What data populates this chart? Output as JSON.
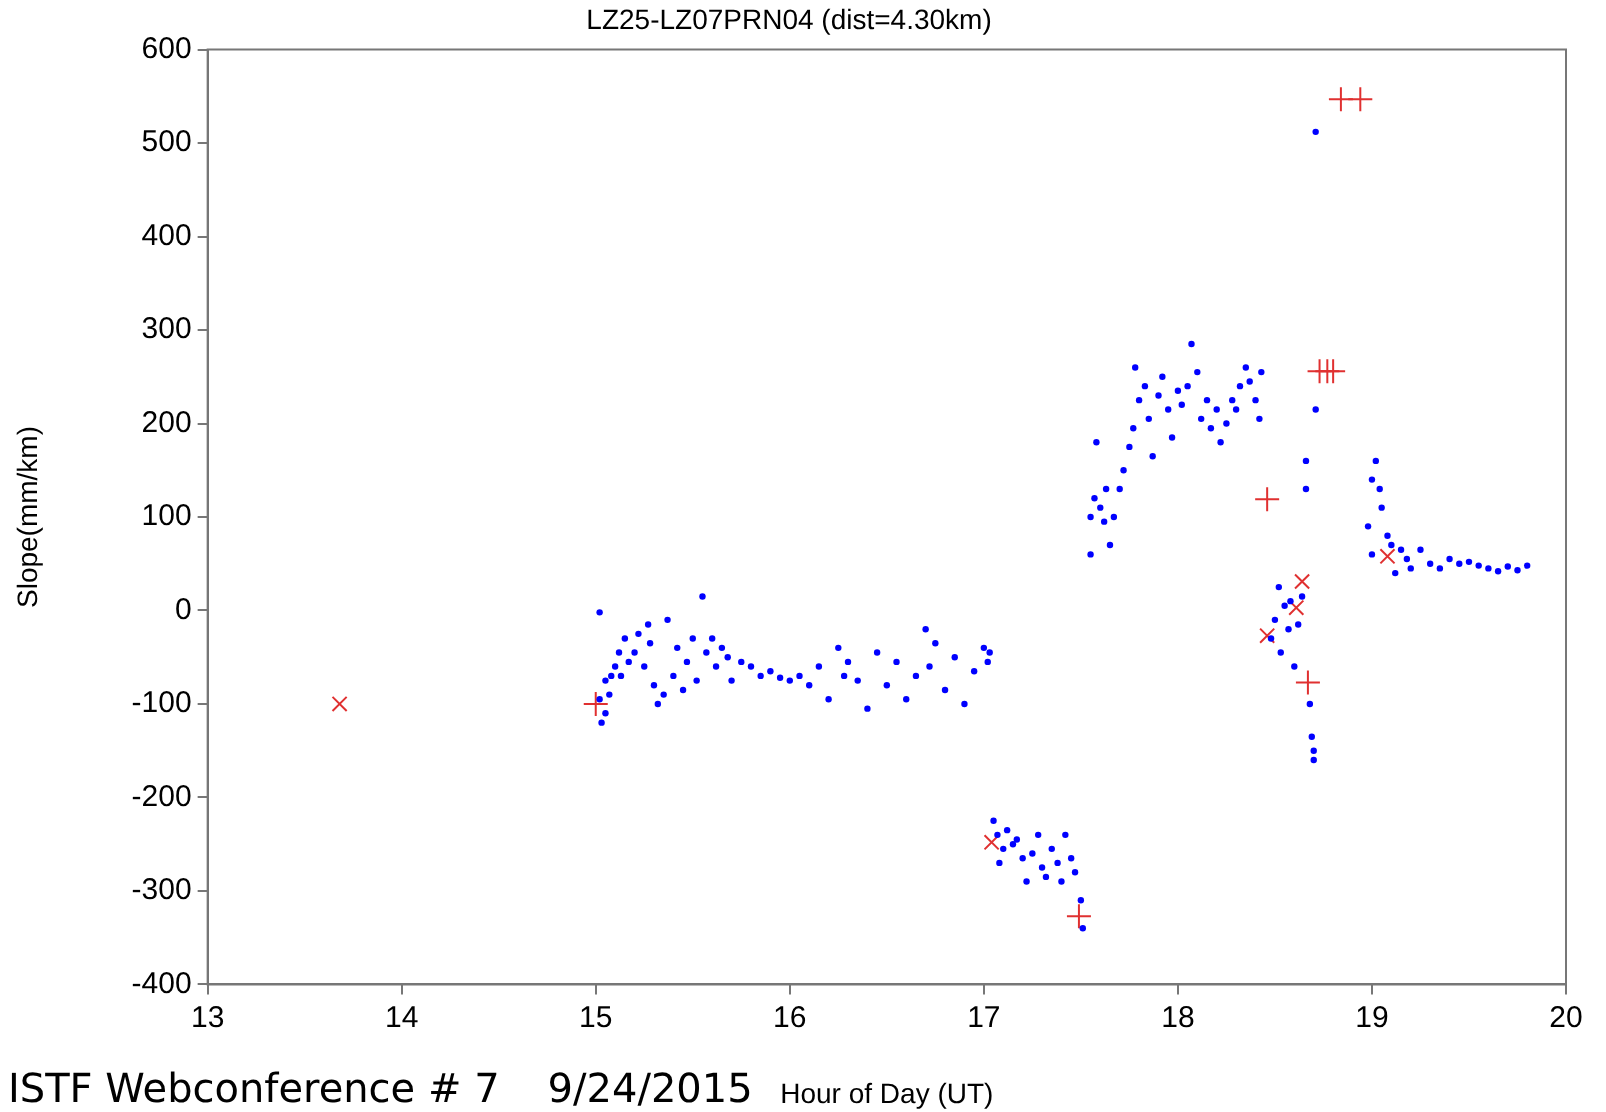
{
  "chart_data": {
    "type": "scatter",
    "title": "LZ25-LZ07PRN04 (dist=4.30km)",
    "xlabel": "Hour of Day (UT)",
    "ylabel": "Slope(mm/km)",
    "annotations": [
      "ISTF Webconference # 7",
      "9/24/2015"
    ],
    "xlim": [
      13,
      20
    ],
    "xticks": [
      13,
      14,
      15,
      16,
      17,
      18,
      19,
      20
    ],
    "ylim": [
      -400,
      600
    ],
    "yticks": [
      -400,
      -300,
      -200,
      -100,
      0,
      100,
      200,
      300,
      400,
      500,
      600
    ],
    "grid": false,
    "legend": false,
    "series": [
      {
        "color": "#0000ff",
        "marker": "circle",
        "x": [
          15.02,
          15.02,
          15.03,
          15.05,
          15.05,
          15.07,
          15.08,
          15.1,
          15.12,
          15.13,
          15.15,
          15.17,
          15.2,
          15.22,
          15.25,
          15.27,
          15.28,
          15.3,
          15.32,
          15.35,
          15.37,
          15.4,
          15.42,
          15.45,
          15.47,
          15.5,
          15.52,
          15.55,
          15.57,
          15.6,
          15.62,
          15.65,
          15.68,
          15.7,
          15.75,
          15.8,
          15.85,
          15.9,
          15.95,
          16.0,
          16.05,
          16.1,
          16.15,
          16.2,
          16.25,
          16.28,
          16.3,
          16.35,
          16.4,
          16.45,
          16.5,
          16.55,
          16.6,
          16.65,
          16.7,
          16.72,
          16.75,
          16.8,
          16.85,
          16.9,
          16.95,
          17.0,
          17.02,
          17.03,
          17.05,
          17.07,
          17.08,
          17.1,
          17.12,
          17.15,
          17.17,
          17.2,
          17.22,
          17.25,
          17.28,
          17.3,
          17.32,
          17.35,
          17.38,
          17.4,
          17.42,
          17.45,
          17.47,
          17.5,
          17.51,
          17.55,
          17.55,
          17.57,
          17.58,
          17.6,
          17.62,
          17.63,
          17.65,
          17.67,
          17.7,
          17.72,
          17.75,
          17.77,
          17.78,
          17.8,
          17.83,
          17.85,
          17.87,
          17.9,
          17.92,
          17.95,
          17.97,
          18.0,
          18.02,
          18.05,
          18.07,
          18.1,
          18.12,
          18.15,
          18.17,
          18.2,
          18.22,
          18.25,
          18.28,
          18.3,
          18.32,
          18.35,
          18.37,
          18.4,
          18.42,
          18.43,
          18.48,
          18.5,
          18.52,
          18.53,
          18.55,
          18.57,
          18.58,
          18.6,
          18.62,
          18.64,
          18.66,
          18.66,
          18.68,
          18.69,
          18.7,
          18.7,
          18.71,
          18.71,
          18.98,
          19.0,
          19.0,
          19.02,
          19.04,
          19.05,
          19.08,
          19.1,
          19.12,
          19.15,
          19.18,
          19.2,
          19.25,
          19.3,
          19.35,
          19.4,
          19.45,
          19.5,
          19.55,
          19.6,
          19.65,
          19.7,
          19.75,
          19.8
        ],
        "values": [
          -2,
          -95,
          -120,
          -110,
          -75,
          -90,
          -70,
          -60,
          -45,
          -70,
          -30,
          -55,
          -45,
          -25,
          -60,
          -15,
          -35,
          -80,
          -100,
          -90,
          -10,
          -70,
          -40,
          -85,
          -55,
          -30,
          -75,
          15,
          -45,
          -30,
          -60,
          -40,
          -50,
          -75,
          -55,
          -60,
          -70,
          -65,
          -72,
          -75,
          -70,
          -80,
          -60,
          -95,
          -40,
          -70,
          -55,
          -75,
          -105,
          -45,
          -80,
          -55,
          -95,
          -70,
          -20,
          -60,
          -35,
          -85,
          -50,
          -100,
          -65,
          -40,
          -55,
          -45,
          -225,
          -240,
          -270,
          -255,
          -235,
          -250,
          -245,
          -265,
          -290,
          -260,
          -240,
          -275,
          -285,
          -255,
          -270,
          -290,
          -240,
          -265,
          -280,
          -310,
          -340,
          100,
          60,
          120,
          180,
          110,
          95,
          130,
          70,
          100,
          130,
          150,
          175,
          195,
          260,
          225,
          240,
          205,
          165,
          230,
          250,
          215,
          185,
          235,
          220,
          240,
          285,
          255,
          205,
          225,
          195,
          215,
          180,
          200,
          225,
          215,
          240,
          260,
          245,
          225,
          205,
          255,
          -30,
          -10,
          25,
          -45,
          5,
          -20,
          10,
          -60,
          -15,
          15,
          130,
          160,
          -100,
          -135,
          -150,
          -160,
          215,
          512,
          90,
          60,
          140,
          160,
          130,
          110,
          80,
          70,
          40,
          65,
          55,
          45,
          65,
          50,
          45,
          55,
          50,
          52,
          48,
          45,
          42,
          47,
          43,
          48
        ]
      },
      {
        "color": "#e03030",
        "marker": "x",
        "x": [
          13.68,
          17.04,
          18.46,
          18.61,
          18.64,
          19.08
        ],
        "values": [
          -100,
          -248,
          -27,
          3,
          31,
          58
        ]
      },
      {
        "color": "#e03030",
        "marker": "cross",
        "x": [
          15.0,
          17.49,
          18.46,
          18.67
        ],
        "values": [
          -100,
          -327,
          119,
          -77
        ]
      },
      {
        "color": "#e03030",
        "marker": "cross",
        "x": [
          18.73,
          18.77,
          18.8,
          18.84,
          18.94
        ],
        "values": [
          256,
          256,
          256,
          547,
          547
        ]
      }
    ]
  }
}
